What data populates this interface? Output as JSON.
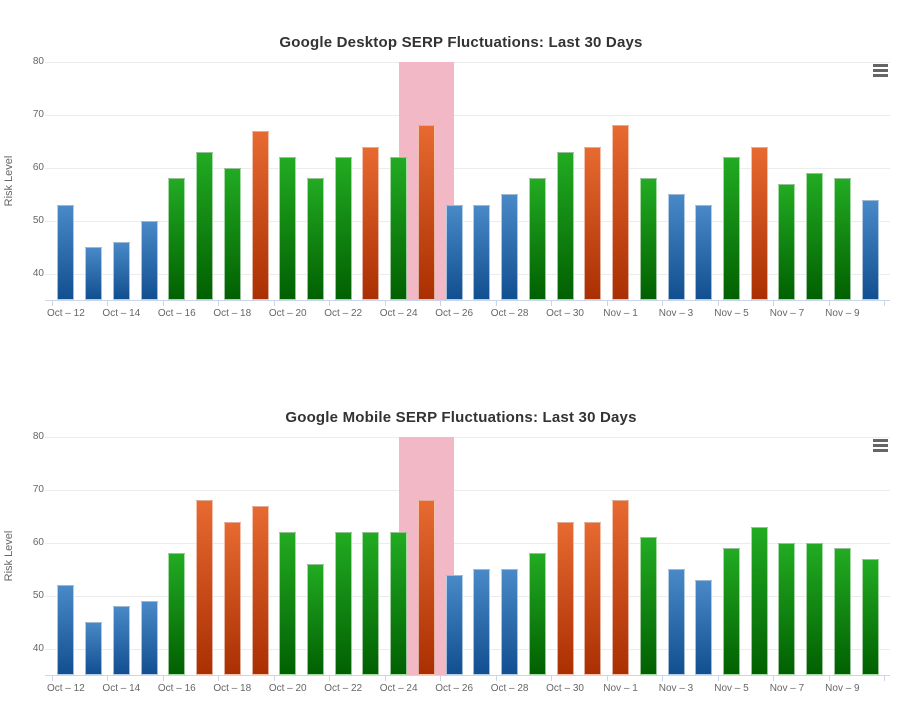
{
  "colors": {
    "blue_top": "#4a89c8",
    "blue_bottom": "#114f90",
    "green_top": "#22ab22",
    "green_bottom": "#016001",
    "orange_top": "#e76a31",
    "orange_bottom": "#aa2f02",
    "band": "#f2b8c5",
    "grid": "#ececec",
    "axis_line": "#ccd6eb",
    "label": "#666666",
    "title": "#333333",
    "menu_icon": "#666666"
  },
  "chart_data": [
    {
      "type": "bar",
      "title": "Google Desktop SERP Fluctuations: Last 30 Days",
      "xlabel": "",
      "ylabel": "Risk Level",
      "ylim": [
        35,
        80
      ],
      "yticks": [
        40,
        50,
        60,
        70,
        80
      ],
      "grid": true,
      "legend_position": "none",
      "x_tick_labels": [
        "Oct – 12",
        "Oct – 14",
        "Oct – 16",
        "Oct – 18",
        "Oct – 20",
        "Oct – 22",
        "Oct – 24",
        "Oct – 26",
        "Oct – 28",
        "Oct – 30",
        "Nov – 1",
        "Nov – 3",
        "Nov – 5",
        "Nov – 7",
        "Nov – 9"
      ],
      "x_label_interval": 2,
      "values": [
        53,
        45,
        46,
        50,
        58,
        63,
        60,
        67,
        62,
        58,
        62,
        64,
        62,
        68,
        53,
        53,
        55,
        58,
        63,
        64,
        68,
        58,
        55,
        53,
        62,
        64,
        57,
        59,
        58,
        54
      ],
      "bar_colors": [
        "blue",
        "blue",
        "blue",
        "blue",
        "green",
        "green",
        "green",
        "orange",
        "green",
        "green",
        "green",
        "orange",
        "green",
        "orange",
        "blue",
        "blue",
        "blue",
        "green",
        "green",
        "orange",
        "orange",
        "green",
        "blue",
        "blue",
        "green",
        "orange",
        "green",
        "green",
        "green",
        "blue"
      ],
      "highlight_band": {
        "from_center_index": 12,
        "to_center_index": 14
      }
    },
    {
      "type": "bar",
      "title": "Google Mobile SERP Fluctuations: Last 30 Days",
      "xlabel": "",
      "ylabel": "Risk Level",
      "ylim": [
        35,
        80
      ],
      "yticks": [
        40,
        50,
        60,
        70,
        80
      ],
      "grid": true,
      "legend_position": "none",
      "x_tick_labels": [
        "Oct – 12",
        "Oct – 14",
        "Oct – 16",
        "Oct – 18",
        "Oct – 20",
        "Oct – 22",
        "Oct – 24",
        "Oct – 26",
        "Oct – 28",
        "Oct – 30",
        "Nov – 1",
        "Nov – 3",
        "Nov – 5",
        "Nov – 7",
        "Nov – 9"
      ],
      "x_label_interval": 2,
      "values": [
        52,
        45,
        48,
        49,
        58,
        68,
        64,
        67,
        62,
        56,
        62,
        62,
        62,
        68,
        54,
        55,
        55,
        58,
        64,
        64,
        68,
        61,
        55,
        53,
        59,
        63,
        60,
        60,
        59,
        57
      ],
      "bar_colors": [
        "blue",
        "blue",
        "blue",
        "blue",
        "green",
        "orange",
        "orange",
        "orange",
        "green",
        "green",
        "green",
        "green",
        "green",
        "orange",
        "blue",
        "blue",
        "blue",
        "green",
        "orange",
        "orange",
        "orange",
        "green",
        "blue",
        "blue",
        "green",
        "green",
        "green",
        "green",
        "green",
        "green"
      ],
      "highlight_band": {
        "from_center_index": 12,
        "to_center_index": 14
      }
    }
  ]
}
